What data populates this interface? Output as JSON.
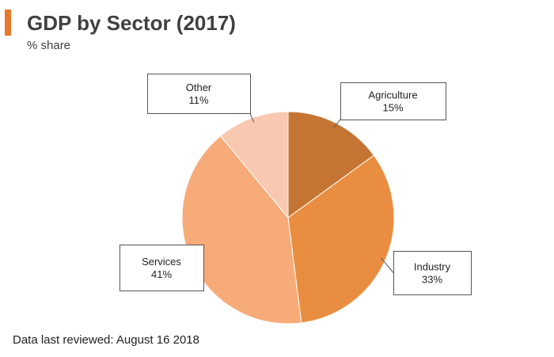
{
  "header": {
    "title": "GDP by Sector (2017)",
    "subtitle": "% share",
    "accent_color": "#E8792B"
  },
  "chart_data": {
    "type": "pie",
    "title": "GDP by Sector (2017)",
    "subtitle": "% share",
    "slices": [
      {
        "label": "Agriculture",
        "value": 15,
        "value_label": "15%",
        "color": "#C57533"
      },
      {
        "label": "Industry",
        "value": 33,
        "value_label": "33%",
        "color": "#E98E40"
      },
      {
        "label": "Services",
        "value": 41,
        "value_label": "41%",
        "color": "#F6AB79"
      },
      {
        "label": "Other",
        "value": 11,
        "value_label": "11%",
        "color": "#F9C8B1"
      }
    ],
    "start": "12 o'clock",
    "direction": "clockwise",
    "labels": "callout boxes"
  },
  "footer": {
    "note": "Data last reviewed: August 16 2018"
  }
}
